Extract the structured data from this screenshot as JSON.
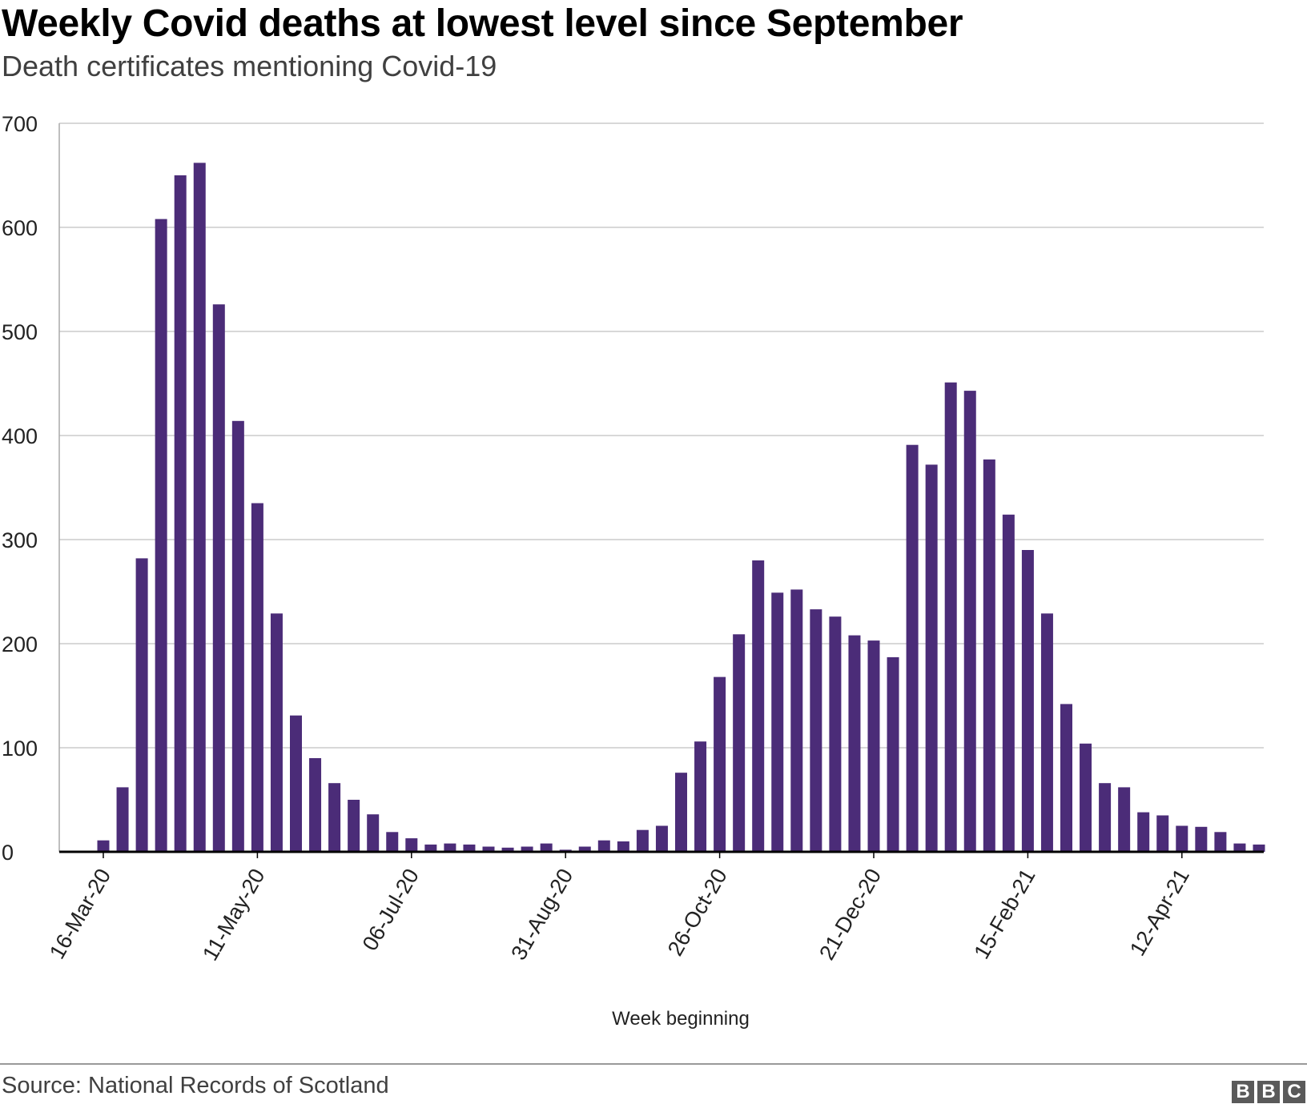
{
  "header": {
    "title": "Weekly Covid deaths at lowest level since September",
    "subtitle": "Death certificates mentioning Covid-19"
  },
  "footer": {
    "source": "Source: National Records of Scotland",
    "logo_letters": [
      "B",
      "B",
      "C"
    ]
  },
  "colors": {
    "bar": "#4b2c78",
    "grid": "#cccccc",
    "axis": "#000000",
    "logo": "#5a5a5a"
  },
  "chart_data": {
    "type": "bar",
    "title": "Weekly Covid deaths at lowest level since September",
    "subtitle": "Death certificates mentioning Covid-19",
    "xlabel": "Week beginning",
    "ylabel": "",
    "ylim": [
      0,
      700
    ],
    "yticks": [
      0,
      100,
      200,
      300,
      400,
      500,
      600,
      700
    ],
    "grid": true,
    "first_week": "16-Mar-20",
    "xtick_labels": [
      {
        "label": "16-Mar-20",
        "index": 0
      },
      {
        "label": "11-May-20",
        "index": 8
      },
      {
        "label": "06-Jul-20",
        "index": 16
      },
      {
        "label": "31-Aug-20",
        "index": 24
      },
      {
        "label": "26-Oct-20",
        "index": 32
      },
      {
        "label": "21-Dec-20",
        "index": 40
      },
      {
        "label": "15-Feb-21",
        "index": 48
      },
      {
        "label": "12-Apr-21",
        "index": 56
      }
    ],
    "values": [
      11,
      62,
      282,
      608,
      650,
      662,
      526,
      414,
      335,
      229,
      131,
      90,
      66,
      50,
      36,
      19,
      13,
      7,
      8,
      7,
      5,
      4,
      5,
      8,
      2,
      5,
      11,
      10,
      21,
      25,
      76,
      106,
      168,
      209,
      280,
      249,
      252,
      233,
      226,
      208,
      203,
      187,
      391,
      372,
      451,
      443,
      377,
      324,
      290,
      229,
      142,
      104,
      66,
      62,
      38,
      35,
      25,
      24,
      19,
      8,
      7
    ]
  }
}
